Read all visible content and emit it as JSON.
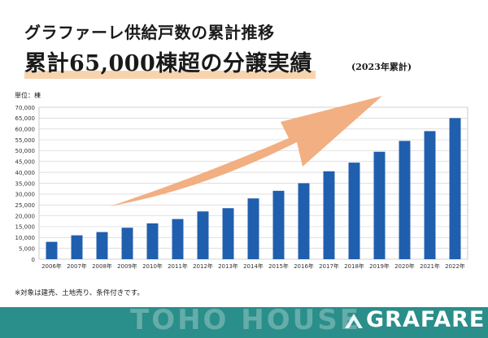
{
  "header": {
    "subtitle": "グラファーレ供給戸数の累計推移",
    "headline": "累計65,000棟超の分譲実績",
    "period_note": "(2023年累計)"
  },
  "chart_data": {
    "type": "bar",
    "title": "グラファーレ供給戸数の累計推移",
    "unit_label": "単位：棟",
    "categories": [
      "2006年",
      "2007年",
      "2008年",
      "2009年",
      "2010年",
      "2011年",
      "2012年",
      "2013年",
      "2014年",
      "2015年",
      "2016年",
      "2017年",
      "2018年",
      "2019年",
      "2020年",
      "2021年",
      "2022年"
    ],
    "values": [
      8000,
      11000,
      12500,
      14500,
      16500,
      18500,
      22000,
      23500,
      28000,
      31500,
      35000,
      40500,
      44500,
      49500,
      54500,
      59000,
      65000
    ],
    "ylim": [
      0,
      70000
    ],
    "yticks": [
      0,
      5000,
      10000,
      15000,
      20000,
      25000,
      30000,
      35000,
      40000,
      45000,
      50000,
      55000,
      60000,
      65000,
      70000
    ],
    "ytick_labels": [
      "0",
      "5,000",
      "10,000",
      "15,000",
      "20,000",
      "25,000",
      "30,000",
      "35,000",
      "40,000",
      "45,000",
      "50,000",
      "55,000",
      "60,000",
      "65,000",
      "70,000"
    ],
    "grid": true,
    "bar_color": "#1f5fae",
    "arrow_color": "#f1a877"
  },
  "footnote": "※対象は建売、土地売り、条件付きです。",
  "footer": {
    "company_watermark": "TOHO HOUSE",
    "brand": "GRAFARE",
    "band_color": "#2a8e8a"
  }
}
